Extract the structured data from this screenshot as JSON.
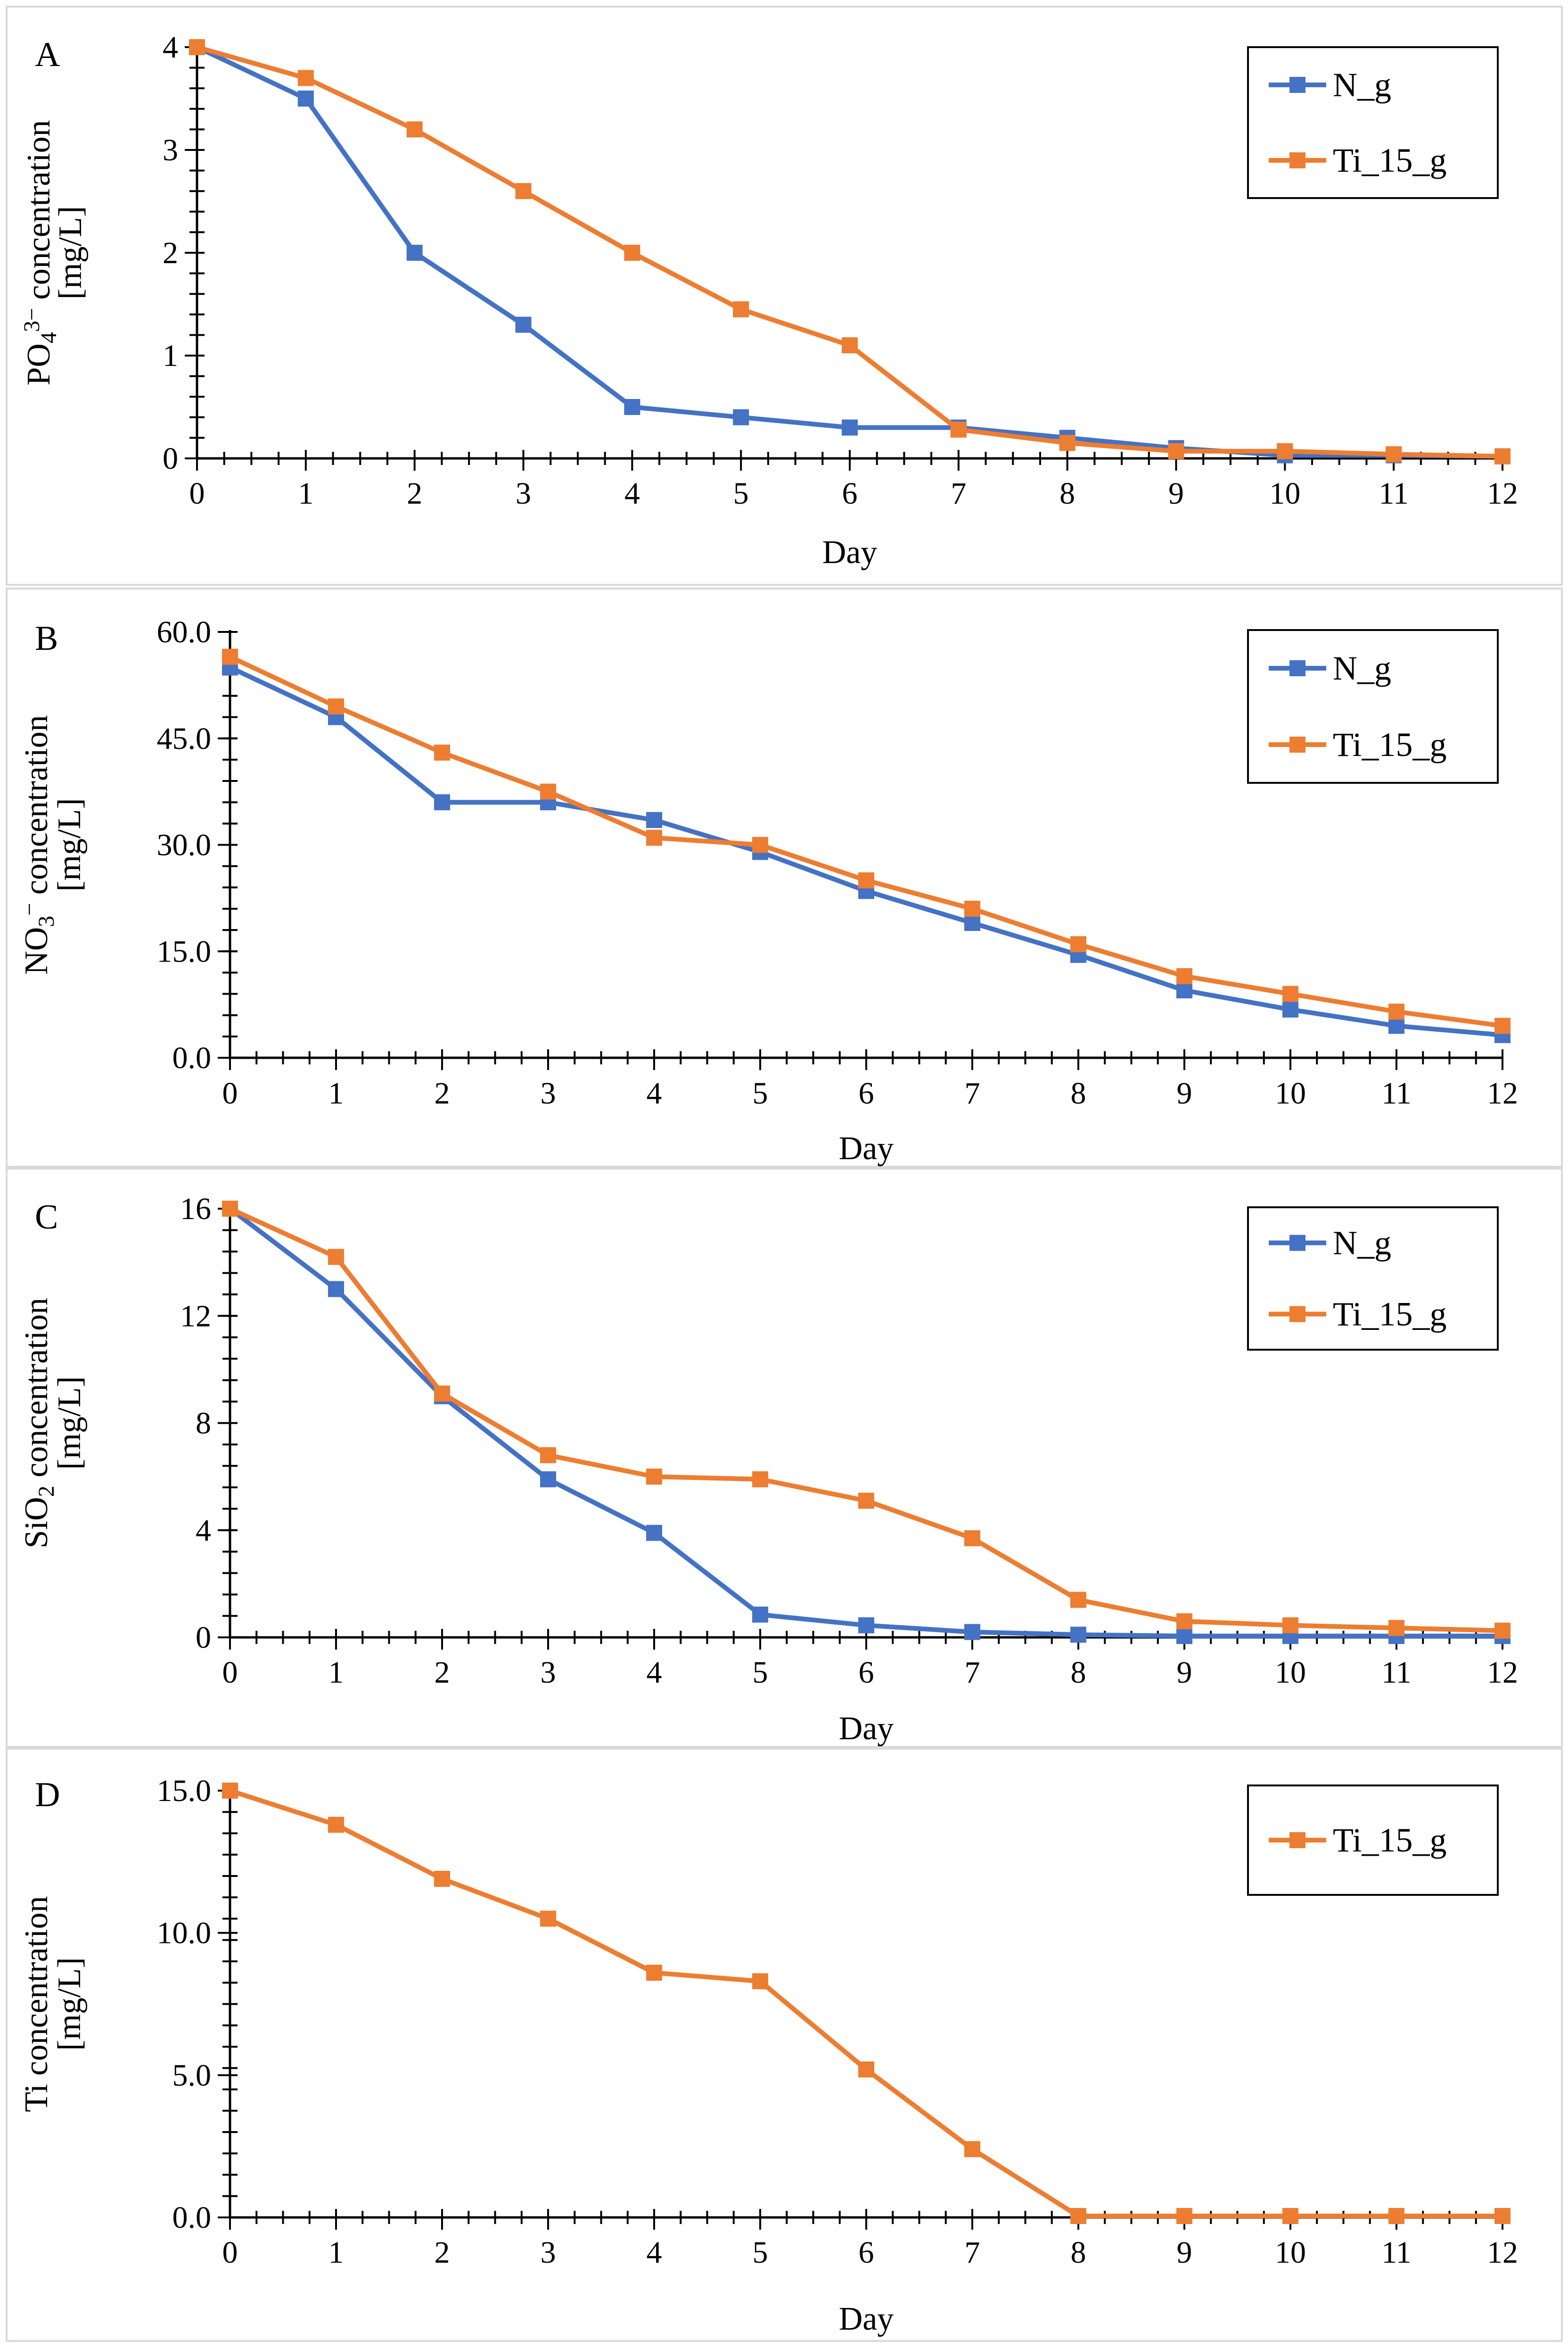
{
  "chart_data": [
    {
      "type": "line",
      "panel_label": "A",
      "ylabel_lines": [
        "PO4^3− concentration",
        "[mg/L]"
      ],
      "ylabel_rich": [
        {
          "t": "PO"
        },
        {
          "t": "4",
          "sub": true
        },
        {
          "t": "3−",
          "sup": true
        },
        {
          "t": " concentration"
        }
      ],
      "ylabel_unit": "[mg/L]",
      "xlabel": "Day",
      "x": [
        0,
        1,
        2,
        3,
        4,
        5,
        6,
        7,
        8,
        9,
        10,
        11,
        12
      ],
      "xlim": [
        0,
        12
      ],
      "ylim": [
        0,
        4
      ],
      "yticks": [
        0,
        1,
        2,
        3,
        4
      ],
      "ytick_labels": [
        "0",
        "1",
        "2",
        "3",
        "4"
      ],
      "xtick_labels": [
        "0",
        "1",
        "2",
        "3",
        "4",
        "5",
        "6",
        "7",
        "8",
        "9",
        "10",
        "11",
        "12"
      ],
      "minor_y": 0.2,
      "legend": "top-right",
      "series": [
        {
          "name": "N_g",
          "color": "#4472c4",
          "values": [
            4.0,
            3.5,
            2.0,
            1.3,
            0.5,
            0.4,
            0.3,
            0.3,
            0.2,
            0.1,
            0.03,
            0.03,
            0.02
          ]
        },
        {
          "name": "Ti_15_g",
          "color": "#ed7d31",
          "values": [
            4.0,
            3.7,
            3.2,
            2.6,
            2.0,
            1.45,
            1.1,
            0.28,
            0.15,
            0.07,
            0.07,
            0.04,
            0.02
          ]
        }
      ]
    },
    {
      "type": "line",
      "panel_label": "B",
      "ylabel_lines": [
        "NO3− concentration",
        "[mg/L]"
      ],
      "ylabel_rich": [
        {
          "t": "NO"
        },
        {
          "t": "3",
          "sub": true
        },
        {
          "t": "−",
          "sup": true
        },
        {
          "t": " concentration"
        }
      ],
      "ylabel_unit": "[mg/L]",
      "xlabel": "Day",
      "x": [
        0,
        1,
        2,
        3,
        4,
        5,
        6,
        7,
        8,
        9,
        10,
        11,
        12
      ],
      "xlim": [
        0,
        12
      ],
      "ylim": [
        0,
        60
      ],
      "yticks": [
        0,
        15,
        30,
        45,
        60
      ],
      "ytick_labels": [
        "0.0",
        "15.0",
        "30.0",
        "45.0",
        "60.0"
      ],
      "xtick_labels": [
        "0",
        "1",
        "2",
        "3",
        "4",
        "5",
        "6",
        "7",
        "8",
        "9",
        "10",
        "11",
        "12"
      ],
      "minor_y": 3,
      "legend": "top-right",
      "series": [
        {
          "name": "N_g",
          "color": "#4472c4",
          "values": [
            55.0,
            48.0,
            36.0,
            36.0,
            33.5,
            29.0,
            23.5,
            19.0,
            14.5,
            9.5,
            6.8,
            4.5,
            3.2
          ]
        },
        {
          "name": "Ti_15_g",
          "color": "#ed7d31",
          "values": [
            56.5,
            49.5,
            43.0,
            37.5,
            31.0,
            30.0,
            25.0,
            21.0,
            16.0,
            11.5,
            9.0,
            6.5,
            4.5
          ]
        }
      ]
    },
    {
      "type": "line",
      "panel_label": "C",
      "ylabel_lines": [
        "SiO2 concentration",
        "[mg/L]"
      ],
      "ylabel_rich": [
        {
          "t": "SiO"
        },
        {
          "t": "2",
          "sub": true
        },
        {
          "t": " concentration"
        }
      ],
      "ylabel_unit": "[mg/L]",
      "xlabel": "Day",
      "x": [
        0,
        1,
        2,
        3,
        4,
        5,
        6,
        7,
        8,
        9,
        10,
        11,
        12
      ],
      "xlim": [
        0,
        12
      ],
      "ylim": [
        0,
        16
      ],
      "yticks": [
        0,
        4,
        8,
        12,
        16
      ],
      "ytick_labels": [
        "0",
        "4",
        "8",
        "12",
        "16"
      ],
      "xtick_labels": [
        "0",
        "1",
        "2",
        "3",
        "4",
        "5",
        "6",
        "7",
        "8",
        "9",
        "10",
        "11",
        "12"
      ],
      "minor_y": 0.8,
      "legend": "top-right",
      "series": [
        {
          "name": "N_g",
          "color": "#4472c4",
          "values": [
            16.0,
            13.0,
            9.0,
            5.9,
            3.9,
            0.85,
            0.45,
            0.2,
            0.1,
            0.05,
            0.05,
            0.05,
            0.05
          ]
        },
        {
          "name": "Ti_15_g",
          "color": "#ed7d31",
          "values": [
            16.0,
            14.2,
            9.1,
            6.8,
            6.0,
            5.9,
            5.1,
            3.7,
            1.4,
            0.6,
            0.45,
            0.35,
            0.25
          ]
        }
      ]
    },
    {
      "type": "line",
      "panel_label": "D",
      "ylabel_lines": [
        "Ti concentration",
        "[mg/L]"
      ],
      "ylabel_rich": [
        {
          "t": "Ti concentration"
        }
      ],
      "ylabel_unit": "[mg/L]",
      "xlabel": "Day",
      "x": [
        0,
        1,
        2,
        3,
        4,
        5,
        6,
        7,
        8,
        9,
        10,
        11,
        12
      ],
      "xlim": [
        0,
        12
      ],
      "ylim": [
        0,
        15
      ],
      "yticks": [
        0,
        5,
        10,
        15
      ],
      "ytick_labels": [
        "0.0",
        "5.0",
        "10.0",
        "15.0"
      ],
      "xtick_labels": [
        "0",
        "1",
        "2",
        "3",
        "4",
        "5",
        "6",
        "7",
        "8",
        "9",
        "10",
        "11",
        "12"
      ],
      "minor_y": 0.75,
      "legend": "top-right",
      "series": [
        {
          "name": "Ti_15_g",
          "color": "#ed7d31",
          "values": [
            15.0,
            13.8,
            11.9,
            10.5,
            8.6,
            8.3,
            5.2,
            2.4,
            0.05,
            0.05,
            0.05,
            0.05,
            0.05
          ]
        }
      ]
    }
  ]
}
